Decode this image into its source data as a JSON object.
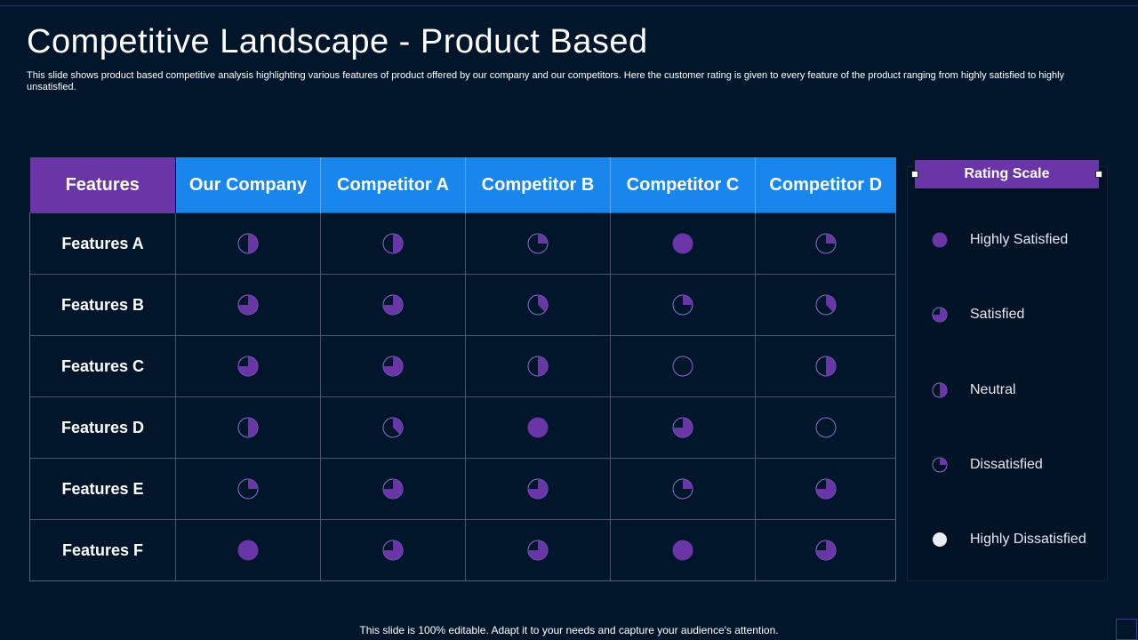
{
  "title": "Competitive Landscape - Product Based",
  "subtitle": "This slide shows product based competitive analysis highlighting various features of product offered by our company and our competitors. Here the customer rating is given to every feature of the product ranging from highly satisfied to highly unsatisfied.",
  "colors": {
    "accent": "#6a35a7",
    "header_blue": "#1986ee",
    "background": "#01162b",
    "rating_fill": "#6a35a7",
    "rating_stroke": "#8b6fd0"
  },
  "table": {
    "header": {
      "features": "Features",
      "columns": [
        "Our Company",
        "Competitor A",
        "Competitor B",
        "Competitor C",
        "Competitor D"
      ]
    },
    "rows": [
      {
        "label": "Features A",
        "ratings": [
          0.5,
          0.5,
          0.25,
          1.0,
          0.25
        ]
      },
      {
        "label": "Features B",
        "ratings": [
          0.75,
          0.75,
          0.375,
          0.25,
          0.375
        ]
      },
      {
        "label": "Features C",
        "ratings": [
          0.75,
          0.75,
          0.5,
          0.0,
          0.5
        ]
      },
      {
        "label": "Features D",
        "ratings": [
          0.5,
          0.375,
          1.0,
          0.75,
          0.0
        ]
      },
      {
        "label": "Features E",
        "ratings": [
          0.25,
          0.75,
          0.75,
          0.25,
          0.75
        ]
      },
      {
        "label": "Features F",
        "ratings": [
          1.0,
          0.75,
          0.75,
          1.0,
          0.75
        ]
      }
    ]
  },
  "legend": {
    "title": "Rating Scale",
    "items": [
      {
        "label": "Highly Satisfied",
        "level": 1.0
      },
      {
        "label": "Satisfied",
        "level": 0.75
      },
      {
        "label": "Neutral",
        "level": 0.5
      },
      {
        "label": "Dissatisfied",
        "level": 0.25
      },
      {
        "label": "Highly Dissatisfied",
        "level": "white"
      }
    ]
  },
  "footer": "This slide is 100% editable. Adapt it to your needs and capture your audience's attention."
}
